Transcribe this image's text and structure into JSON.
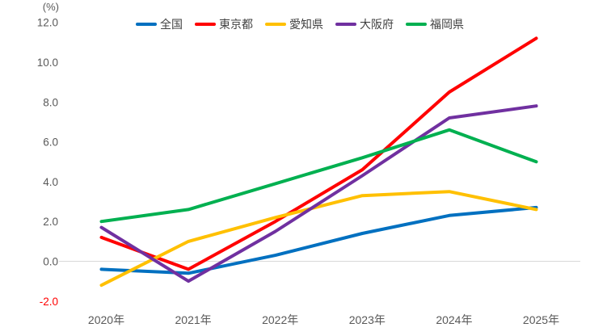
{
  "chart_data": {
    "type": "line",
    "title": "",
    "unit_label": "(%)",
    "categories": [
      "2020年",
      "2021年",
      "2022年",
      "2023年",
      "2024年",
      "2025年"
    ],
    "series": [
      {
        "name": "全国",
        "color": "#0070C0",
        "values": [
          -0.4,
          -0.6,
          0.3,
          1.4,
          2.3,
          2.7
        ]
      },
      {
        "name": "東京都",
        "color": "#FF0000",
        "values": [
          1.2,
          -0.4,
          2.0,
          4.6,
          8.5,
          11.2
        ]
      },
      {
        "name": "愛知県",
        "color": "#FFC000",
        "values": [
          -1.2,
          1.0,
          2.2,
          3.3,
          3.5,
          2.6
        ]
      },
      {
        "name": "大阪府",
        "color": "#7030A0",
        "values": [
          1.7,
          -1.0,
          1.5,
          4.3,
          7.2,
          7.8
        ]
      },
      {
        "name": "福岡県",
        "color": "#00B050",
        "values": [
          2.0,
          2.6,
          3.9,
          5.2,
          6.6,
          5.0
        ]
      }
    ],
    "ylabel": "(%)",
    "ylim": [
      -2.0,
      12.0
    ],
    "ytick_step": 2.0,
    "ytick_decimals": 1,
    "ytick_color": "#595959",
    "negative_tick_color": "#FF0000",
    "gridline_color": "#D9D9D9",
    "grid": "zero-line-only",
    "legend_position": "top"
  }
}
